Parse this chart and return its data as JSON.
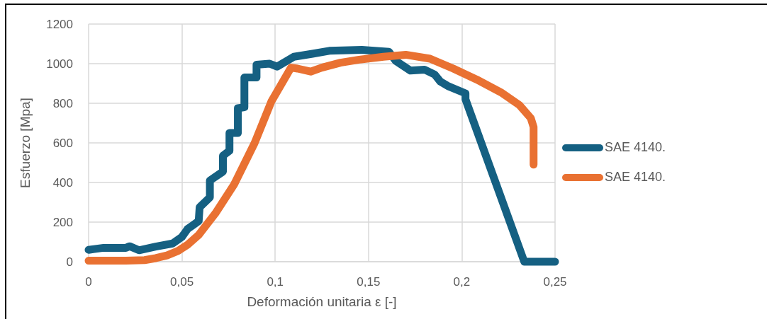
{
  "chart_data": {
    "type": "line",
    "xlabel": "Deformación unitaria ε [-]",
    "ylabel": "Esfuerzo [Mpa]",
    "xlim": [
      0,
      0.25
    ],
    "ylim": [
      0,
      1200
    ],
    "xticks": [
      0,
      {
        "value": 0.05,
        "label": "0,05"
      },
      {
        "value": 0.1,
        "label": "0,1"
      },
      {
        "value": 0.15,
        "label": "0,15"
      },
      {
        "value": 0.2,
        "label": "0,2"
      },
      {
        "value": 0.25,
        "label": "0,25"
      }
    ],
    "yticks": [
      0,
      200,
      400,
      600,
      800,
      1000,
      1200
    ],
    "grid": true,
    "legend": "right",
    "marker": "none",
    "line_style": "solid",
    "series": [
      {
        "name": "SAE 4140.",
        "color": "#156082",
        "x": [
          0,
          0.003,
          0.008,
          0.02,
          0.022,
          0.027,
          0.036,
          0.045,
          0.05,
          0.053,
          0.056,
          0.059,
          0.0595,
          0.065,
          0.065,
          0.072,
          0.072,
          0.0755,
          0.0755,
          0.08,
          0.08,
          0.0835,
          0.0835,
          0.09,
          0.09,
          0.097,
          0.101,
          0.11,
          0.12,
          0.129,
          0.1465,
          0.161,
          0.1645,
          0.1725,
          0.18,
          0.1855,
          0.1885,
          0.193,
          0.202,
          0.202,
          0.2335,
          0.25
        ],
        "values": [
          60,
          64,
          70,
          70,
          78,
          58,
          76,
          92,
          125,
          165,
          185,
          205,
          275,
          325,
          410,
          455,
          535,
          560,
          650,
          650,
          775,
          780,
          930,
          930,
          995,
          1000,
          985,
          1035,
          1050,
          1065,
          1070,
          1060,
          1015,
          965,
          970,
          945,
          910,
          885,
          850,
          820,
          0,
          0
        ]
      },
      {
        "name": "SAE 4140.",
        "color": "#e97132",
        "x": [
          0,
          0.01,
          0.02,
          0.03,
          0.036,
          0.042,
          0.048,
          0.053,
          0.059,
          0.068,
          0.078,
          0.089,
          0.098,
          0.1085,
          0.112,
          0.119,
          0.125,
          0.135,
          0.145,
          0.158,
          0.17,
          0.183,
          0.1955,
          0.208,
          0.221,
          0.231,
          0.237,
          0.2385,
          0.2385
        ],
        "values": [
          5,
          5,
          5,
          8,
          18,
          32,
          55,
          85,
          135,
          245,
          390,
          600,
          810,
          980,
          975,
          960,
          980,
          1005,
          1020,
          1035,
          1045,
          1025,
          975,
          920,
          855,
          790,
          725,
          680,
          490
        ]
      }
    ]
  }
}
